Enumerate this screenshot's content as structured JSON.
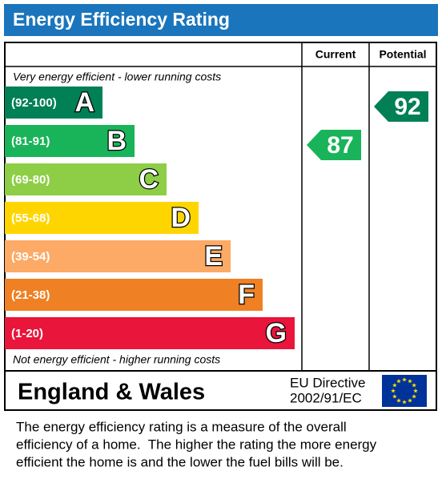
{
  "title": "Energy Efficiency Rating",
  "columns": {
    "current": "Current",
    "potential": "Potential"
  },
  "top_note": "Very energy efficient - lower running costs",
  "bottom_note": "Not energy efficient - higher running costs",
  "bands": [
    {
      "range": "(92-100)",
      "letter": "A",
      "color": "#008054"
    },
    {
      "range": "(81-91)",
      "letter": "B",
      "color": "#19b459"
    },
    {
      "range": "(69-80)",
      "letter": "C",
      "color": "#8dce46"
    },
    {
      "range": "(55-68)",
      "letter": "D",
      "color": "#ffd500"
    },
    {
      "range": "(39-54)",
      "letter": "E",
      "color": "#fcaa65"
    },
    {
      "range": "(21-38)",
      "letter": "F",
      "color": "#ef8023"
    },
    {
      "range": "(1-20)",
      "letter": "G",
      "color": "#e9153b"
    }
  ],
  "current": 87,
  "potential": 92,
  "footer": {
    "region": "England & Wales",
    "directive": [
      "EU Directive",
      "2002/91/EC"
    ]
  },
  "description": [
    "The energy efficiency rating is a measure of the overall",
    "efficiency of a home.  The higher the rating the more energy",
    "efficient the home is and the lower the fuel bills will be."
  ]
}
